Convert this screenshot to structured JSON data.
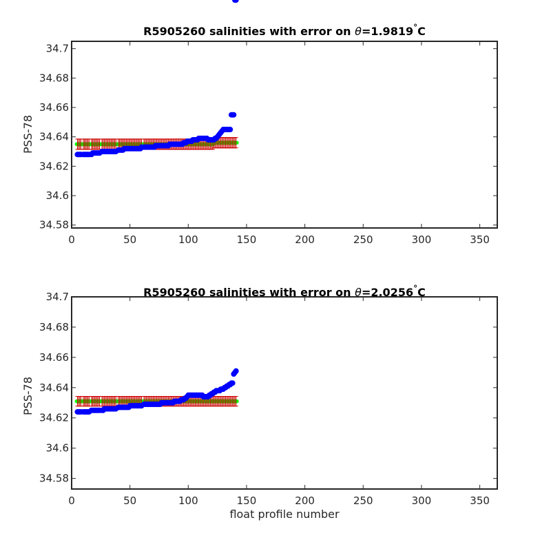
{
  "chart_data": [
    {
      "type": "scatter",
      "title_prefix": "R5905260 salinities with error on ",
      "theta_symbol": "θ",
      "title_value": "=1.9819",
      "degree_symbol": "°",
      "title_unit": "C",
      "xlabel": "",
      "ylabel": "PSS-78",
      "xlim": [
        0,
        365
      ],
      "ylim": [
        34.578,
        34.705
      ],
      "xticks": [
        "0",
        "50",
        "100",
        "150",
        "200",
        "250",
        "300",
        "350"
      ],
      "yticks": [
        "34.58",
        "34.6",
        "34.62",
        "34.64",
        "34.66",
        "34.68",
        "34.7"
      ],
      "colors": {
        "salinity": "#0000ff",
        "mapped": "#00ff00",
        "error": "#cc0000"
      },
      "x": [
        5,
        6,
        7,
        8,
        10,
        11,
        12,
        13,
        14,
        15,
        17,
        18,
        19,
        20,
        21,
        22,
        23,
        24,
        26,
        27,
        28,
        29,
        30,
        31,
        32,
        33,
        34,
        35,
        36,
        37,
        38,
        40,
        41,
        42,
        43,
        44,
        45,
        46,
        47,
        48,
        49,
        50,
        51,
        52,
        53,
        54,
        55,
        56,
        57,
        58,
        59,
        60,
        62,
        63,
        64,
        65,
        66,
        67,
        68,
        69,
        70,
        71,
        72,
        73,
        74,
        75,
        76,
        77,
        78,
        79,
        80,
        81,
        82,
        83,
        84,
        85,
        86,
        87,
        88,
        89,
        90,
        91,
        92,
        93,
        94,
        95,
        96,
        97,
        98,
        99,
        100,
        101,
        102,
        103,
        104,
        105,
        106,
        107,
        108,
        109,
        110,
        111,
        112,
        113,
        114,
        115,
        116,
        117,
        118,
        119,
        120,
        121,
        122,
        123,
        124,
        125,
        126,
        127,
        128,
        129,
        130,
        131,
        132,
        133,
        134,
        135,
        136,
        137,
        138,
        139,
        140,
        141
      ],
      "salinity": [
        34.628,
        34.628,
        34.628,
        34.628,
        34.628,
        34.628,
        34.628,
        34.628,
        34.628,
        34.628,
        34.628,
        34.629,
        34.629,
        34.629,
        34.629,
        34.629,
        34.629,
        34.629,
        34.63,
        34.63,
        34.63,
        34.63,
        34.63,
        34.63,
        34.63,
        34.63,
        34.63,
        34.63,
        34.63,
        34.63,
        34.63,
        34.631,
        34.631,
        34.631,
        34.631,
        34.631,
        34.632,
        34.632,
        34.632,
        34.632,
        34.632,
        34.632,
        34.632,
        34.632,
        34.632,
        34.632,
        34.632,
        34.632,
        34.632,
        34.632,
        34.632,
        34.633,
        34.633,
        34.633,
        34.633,
        34.633,
        34.633,
        34.633,
        34.633,
        34.633,
        34.633,
        34.633,
        34.634,
        34.634,
        34.634,
        34.634,
        34.634,
        34.634,
        34.634,
        34.634,
        34.634,
        34.634,
        34.634,
        34.634,
        34.635,
        34.635,
        34.635,
        34.635,
        34.635,
        34.635,
        34.635,
        34.635,
        34.635,
        34.635,
        34.635,
        34.635,
        34.636,
        34.636,
        34.636,
        34.637,
        34.637,
        34.637,
        34.637,
        34.637,
        34.638,
        34.638,
        34.638,
        34.638,
        34.638,
        34.639,
        34.639,
        34.639,
        34.639,
        34.639,
        34.639,
        34.639,
        34.639,
        34.638,
        34.638,
        34.638,
        34.638,
        34.638,
        34.638,
        34.639,
        34.639,
        34.64,
        34.641,
        34.642,
        34.643,
        34.644,
        34.645,
        34.645,
        34.645,
        34.645,
        34.645,
        34.645,
        34.645,
        34.655,
        34.655,
        34.655
      ],
      "mapped": [
        34.635,
        34.635,
        34.635,
        34.635,
        34.635,
        34.635,
        34.635,
        34.635,
        34.635,
        34.635,
        34.635,
        34.635,
        34.635,
        34.635,
        34.635,
        34.635,
        34.635,
        34.635,
        34.635,
        34.635,
        34.635,
        34.635,
        34.635,
        34.635,
        34.635,
        34.635,
        34.635,
        34.635,
        34.635,
        34.635,
        34.635,
        34.635,
        34.635,
        34.635,
        34.635,
        34.635,
        34.635,
        34.635,
        34.635,
        34.635,
        34.635,
        34.635,
        34.635,
        34.635,
        34.635,
        34.635,
        34.635,
        34.635,
        34.635,
        34.635,
        34.635,
        34.635,
        34.635,
        34.635,
        34.635,
        34.635,
        34.635,
        34.635,
        34.635,
        34.635,
        34.635,
        34.635,
        34.635,
        34.635,
        34.635,
        34.635,
        34.635,
        34.635,
        34.635,
        34.635,
        34.635,
        34.635,
        34.635,
        34.635,
        34.635,
        34.635,
        34.635,
        34.635,
        34.635,
        34.635,
        34.635,
        34.635,
        34.635,
        34.635,
        34.635,
        34.635,
        34.635,
        34.635,
        34.635,
        34.635,
        34.635,
        34.635,
        34.635,
        34.635,
        34.635,
        34.635,
        34.635,
        34.635,
        34.635,
        34.635,
        34.635,
        34.635,
        34.635,
        34.635,
        34.635,
        34.635,
        34.635,
        34.635,
        34.635,
        34.635,
        34.635,
        34.635,
        34.636,
        34.636,
        34.636,
        34.636,
        34.636,
        34.636,
        34.636,
        34.636,
        34.636,
        34.636,
        34.636,
        34.636,
        34.636,
        34.636,
        34.636,
        34.636,
        34.636,
        34.636,
        34.636,
        34.636
      ],
      "error": 0.0035
    },
    {
      "type": "scatter",
      "title_prefix": "R5905260 salinities with error on ",
      "theta_symbol": "θ",
      "title_value": "=2.0256",
      "degree_symbol": "°",
      "title_unit": "C",
      "xlabel": "float profile number",
      "ylabel": "PSS-78",
      "xlim": [
        0,
        365
      ],
      "ylim": [
        34.573,
        34.7
      ],
      "xticks": [
        "0",
        "50",
        "100",
        "150",
        "200",
        "250",
        "300",
        "350"
      ],
      "yticks": [
        "34.58",
        "34.6",
        "34.62",
        "34.64",
        "34.66",
        "34.68",
        "34.7"
      ],
      "colors": {
        "salinity": "#0000ff",
        "mapped": "#00ff00",
        "error": "#cc0000"
      },
      "x": [
        5,
        6,
        7,
        8,
        10,
        11,
        12,
        13,
        14,
        15,
        17,
        18,
        19,
        20,
        21,
        22,
        23,
        24,
        26,
        27,
        28,
        29,
        30,
        31,
        32,
        33,
        34,
        35,
        36,
        37,
        38,
        40,
        41,
        42,
        43,
        44,
        45,
        46,
        47,
        48,
        49,
        50,
        51,
        52,
        53,
        54,
        55,
        56,
        57,
        58,
        59,
        60,
        62,
        63,
        64,
        65,
        66,
        67,
        68,
        69,
        70,
        71,
        72,
        73,
        74,
        75,
        76,
        77,
        78,
        79,
        80,
        81,
        82,
        83,
        84,
        85,
        86,
        87,
        88,
        89,
        90,
        91,
        92,
        93,
        94,
        95,
        96,
        97,
        98,
        99,
        100,
        101,
        102,
        103,
        104,
        105,
        106,
        107,
        108,
        109,
        110,
        111,
        112,
        113,
        114,
        115,
        116,
        117,
        118,
        119,
        120,
        121,
        122,
        123,
        124,
        125,
        126,
        127,
        128,
        129,
        130,
        131,
        132,
        133,
        134,
        135,
        136,
        137,
        138,
        139,
        140,
        141
      ],
      "salinity": [
        34.624,
        34.624,
        34.624,
        34.624,
        34.624,
        34.624,
        34.624,
        34.624,
        34.624,
        34.624,
        34.625,
        34.625,
        34.625,
        34.625,
        34.625,
        34.625,
        34.625,
        34.625,
        34.625,
        34.625,
        34.626,
        34.626,
        34.626,
        34.626,
        34.626,
        34.626,
        34.626,
        34.626,
        34.626,
        34.626,
        34.626,
        34.627,
        34.627,
        34.627,
        34.627,
        34.627,
        34.627,
        34.627,
        34.627,
        34.627,
        34.627,
        34.628,
        34.628,
        34.628,
        34.628,
        34.628,
        34.628,
        34.628,
        34.628,
        34.628,
        34.628,
        34.628,
        34.629,
        34.629,
        34.629,
        34.629,
        34.629,
        34.629,
        34.629,
        34.629,
        34.629,
        34.629,
        34.629,
        34.629,
        34.629,
        34.629,
        34.629,
        34.63,
        34.63,
        34.63,
        34.63,
        34.63,
        34.63,
        34.63,
        34.63,
        34.63,
        34.63,
        34.63,
        34.631,
        34.631,
        34.631,
        34.631,
        34.631,
        34.631,
        34.632,
        34.632,
        34.632,
        34.633,
        34.633,
        34.634,
        34.635,
        34.635,
        34.635,
        34.635,
        34.635,
        34.635,
        34.635,
        34.635,
        34.635,
        34.635,
        34.635,
        34.635,
        34.635,
        34.634,
        34.634,
        34.634,
        34.634,
        34.634,
        34.635,
        34.635,
        34.636,
        34.636,
        34.637,
        34.637,
        34.638,
        34.638,
        34.638,
        34.638,
        34.639,
        34.639,
        34.639,
        34.64,
        34.64,
        34.641,
        34.641,
        34.642,
        34.642,
        34.643,
        34.643,
        34.649,
        34.65,
        34.651
      ],
      "mapped": [
        34.631,
        34.631,
        34.631,
        34.631,
        34.631,
        34.631,
        34.631,
        34.631,
        34.631,
        34.631,
        34.631,
        34.631,
        34.631,
        34.631,
        34.631,
        34.631,
        34.631,
        34.631,
        34.631,
        34.631,
        34.631,
        34.631,
        34.631,
        34.631,
        34.631,
        34.631,
        34.631,
        34.631,
        34.631,
        34.631,
        34.631,
        34.631,
        34.631,
        34.631,
        34.631,
        34.631,
        34.631,
        34.631,
        34.631,
        34.631,
        34.631,
        34.631,
        34.631,
        34.631,
        34.631,
        34.631,
        34.631,
        34.631,
        34.631,
        34.631,
        34.631,
        34.631,
        34.631,
        34.631,
        34.631,
        34.631,
        34.631,
        34.631,
        34.631,
        34.631,
        34.631,
        34.631,
        34.631,
        34.631,
        34.631,
        34.631,
        34.631,
        34.631,
        34.631,
        34.631,
        34.631,
        34.631,
        34.631,
        34.631,
        34.631,
        34.631,
        34.631,
        34.631,
        34.631,
        34.631,
        34.631,
        34.631,
        34.631,
        34.631,
        34.631,
        34.631,
        34.631,
        34.631,
        34.631,
        34.631,
        34.631,
        34.631,
        34.631,
        34.631,
        34.631,
        34.631,
        34.631,
        34.631,
        34.631,
        34.631,
        34.631,
        34.631,
        34.631,
        34.631,
        34.631,
        34.631,
        34.631,
        34.631,
        34.631,
        34.631,
        34.631,
        34.631,
        34.631,
        34.631,
        34.631,
        34.631,
        34.631,
        34.631,
        34.631,
        34.631,
        34.631,
        34.631,
        34.631,
        34.631,
        34.631,
        34.631,
        34.631,
        34.631,
        34.631,
        34.631,
        34.631,
        34.631
      ],
      "error": 0.0032
    }
  ]
}
